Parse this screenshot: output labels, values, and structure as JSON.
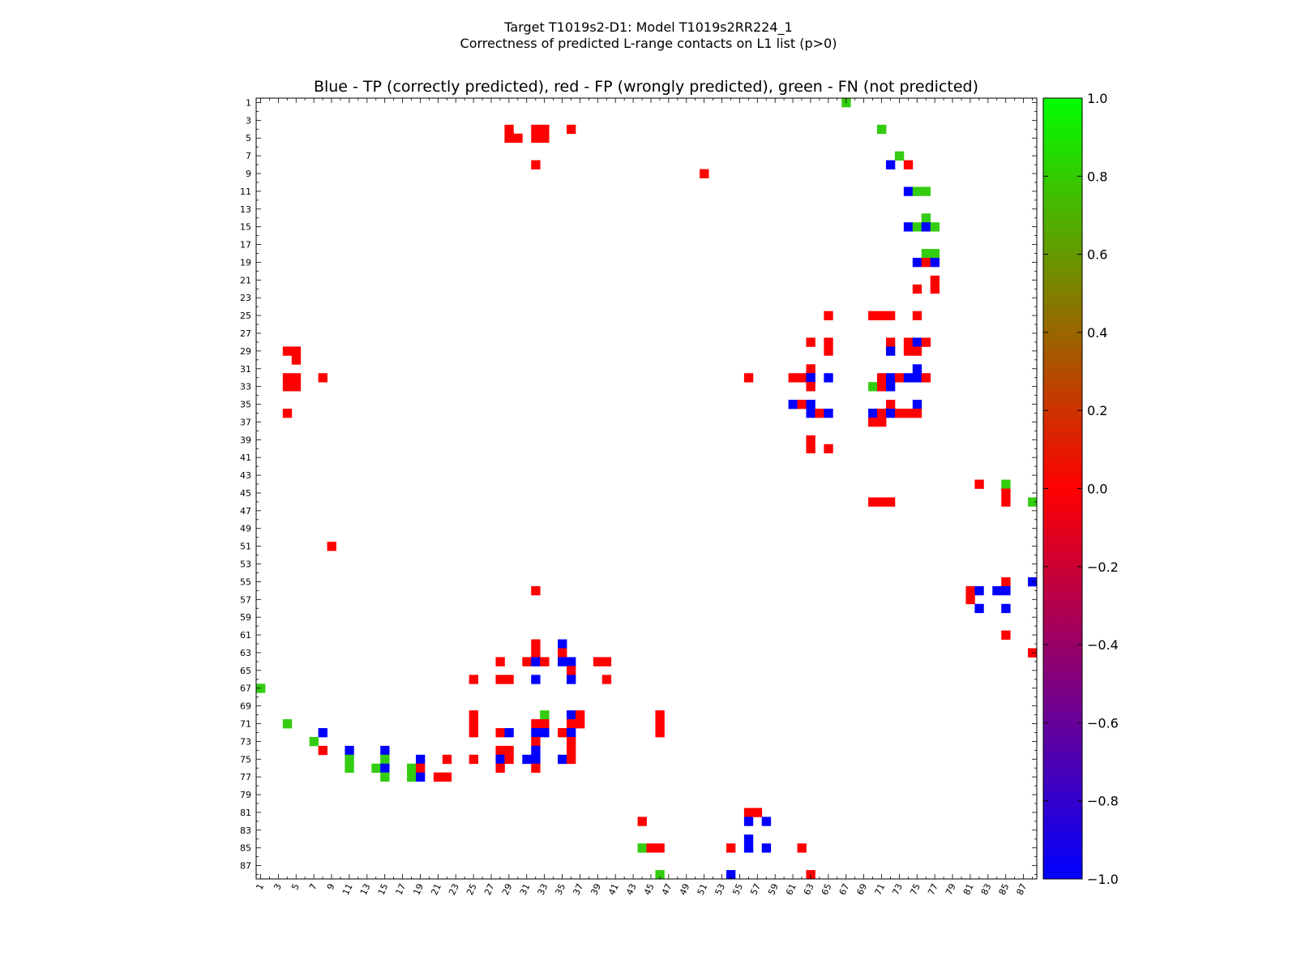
{
  "chart_data": {
    "type": "heatmap",
    "title_line1": "Target T1019s2-D1: Model T1019s2RR224_1",
    "title_line2": "Correctness of predicted L-range contacts on L1 list (p>0)",
    "subtitle": "Blue - TP (correctly predicted), red - FP (wrongly predicted), green - FN (not predicted)",
    "n": 88,
    "xlim": [
      1,
      88
    ],
    "ylim": [
      1,
      88
    ],
    "x_tick_labels": [
      "1",
      "3",
      "5",
      "7",
      "9",
      "11",
      "13",
      "15",
      "17",
      "19",
      "21",
      "23",
      "25",
      "27",
      "29",
      "31",
      "33",
      "35",
      "37",
      "39",
      "41",
      "43",
      "45",
      "47",
      "49",
      "51",
      "53",
      "55",
      "57",
      "59",
      "61",
      "63",
      "65",
      "67",
      "69",
      "71",
      "73",
      "75",
      "77",
      "79",
      "81",
      "83",
      "85",
      "87"
    ],
    "y_tick_labels": [
      "1",
      "3",
      "5",
      "7",
      "9",
      "11",
      "13",
      "15",
      "17",
      "19",
      "21",
      "23",
      "25",
      "27",
      "29",
      "31",
      "33",
      "35",
      "37",
      "39",
      "41",
      "43",
      "45",
      "47",
      "49",
      "51",
      "53",
      "55",
      "57",
      "59",
      "61",
      "63",
      "65",
      "67",
      "69",
      "71",
      "73",
      "75",
      "77",
      "79",
      "81",
      "83",
      "85",
      "87"
    ],
    "colorbar": {
      "min": -1.0,
      "max": 1.0,
      "tick_labels": [
        "1.0",
        "0.8",
        "0.6",
        "0.4",
        "0.2",
        "0.0",
        "−0.2",
        "−0.4",
        "−0.6",
        "−0.8",
        "−1.0"
      ],
      "colormap_stops": [
        "#0000ff",
        "#ff0000",
        "#00ff00"
      ]
    },
    "category_colors": {
      "TP": "#0000ff",
      "FP": "#ff0000",
      "FN": "#33cc11"
    },
    "cells": [
      {
        "x": 67,
        "y": 1,
        "c": "FN"
      },
      {
        "x": 29,
        "y": 4,
        "c": "FP"
      },
      {
        "x": 29,
        "y": 5,
        "c": "FP"
      },
      {
        "x": 30,
        "y": 5,
        "c": "FP"
      },
      {
        "x": 32,
        "y": 4,
        "c": "FP"
      },
      {
        "x": 33,
        "y": 4,
        "c": "FP"
      },
      {
        "x": 32,
        "y": 5,
        "c": "FP"
      },
      {
        "x": 33,
        "y": 5,
        "c": "FP"
      },
      {
        "x": 36,
        "y": 4,
        "c": "FP"
      },
      {
        "x": 71,
        "y": 4,
        "c": "FN"
      },
      {
        "x": 73,
        "y": 7,
        "c": "FN"
      },
      {
        "x": 32,
        "y": 8,
        "c": "FP"
      },
      {
        "x": 72,
        "y": 8,
        "c": "TP"
      },
      {
        "x": 74,
        "y": 8,
        "c": "FP"
      },
      {
        "x": 51,
        "y": 9,
        "c": "FP"
      },
      {
        "x": 74,
        "y": 11,
        "c": "TP"
      },
      {
        "x": 75,
        "y": 11,
        "c": "FN"
      },
      {
        "x": 76,
        "y": 11,
        "c": "FN"
      },
      {
        "x": 76,
        "y": 14,
        "c": "FN"
      },
      {
        "x": 74,
        "y": 15,
        "c": "TP"
      },
      {
        "x": 75,
        "y": 15,
        "c": "FN"
      },
      {
        "x": 76,
        "y": 15,
        "c": "TP"
      },
      {
        "x": 77,
        "y": 15,
        "c": "FN"
      },
      {
        "x": 76,
        "y": 18,
        "c": "FN"
      },
      {
        "x": 77,
        "y": 18,
        "c": "FN"
      },
      {
        "x": 75,
        "y": 19,
        "c": "TP"
      },
      {
        "x": 76,
        "y": 19,
        "c": "FP"
      },
      {
        "x": 77,
        "y": 19,
        "c": "TP"
      },
      {
        "x": 77,
        "y": 21,
        "c": "FP"
      },
      {
        "x": 75,
        "y": 22,
        "c": "FP"
      },
      {
        "x": 77,
        "y": 22,
        "c": "FP"
      },
      {
        "x": 65,
        "y": 25,
        "c": "FP"
      },
      {
        "x": 70,
        "y": 25,
        "c": "FP"
      },
      {
        "x": 71,
        "y": 25,
        "c": "FP"
      },
      {
        "x": 72,
        "y": 25,
        "c": "FP"
      },
      {
        "x": 75,
        "y": 25,
        "c": "FP"
      },
      {
        "x": 63,
        "y": 28,
        "c": "FP"
      },
      {
        "x": 65,
        "y": 28,
        "c": "FP"
      },
      {
        "x": 72,
        "y": 28,
        "c": "FP"
      },
      {
        "x": 74,
        "y": 28,
        "c": "FP"
      },
      {
        "x": 75,
        "y": 28,
        "c": "TP"
      },
      {
        "x": 76,
        "y": 28,
        "c": "FP"
      },
      {
        "x": 4,
        "y": 29,
        "c": "FP"
      },
      {
        "x": 5,
        "y": 29,
        "c": "FP"
      },
      {
        "x": 5,
        "y": 30,
        "c": "FP"
      },
      {
        "x": 65,
        "y": 29,
        "c": "FP"
      },
      {
        "x": 72,
        "y": 29,
        "c": "TP"
      },
      {
        "x": 74,
        "y": 29,
        "c": "FP"
      },
      {
        "x": 75,
        "y": 29,
        "c": "FP"
      },
      {
        "x": 63,
        "y": 31,
        "c": "FP"
      },
      {
        "x": 75,
        "y": 31,
        "c": "TP"
      },
      {
        "x": 4,
        "y": 32,
        "c": "FP"
      },
      {
        "x": 5,
        "y": 32,
        "c": "FP"
      },
      {
        "x": 4,
        "y": 33,
        "c": "FP"
      },
      {
        "x": 5,
        "y": 33,
        "c": "FP"
      },
      {
        "x": 8,
        "y": 32,
        "c": "FP"
      },
      {
        "x": 56,
        "y": 32,
        "c": "FP"
      },
      {
        "x": 61,
        "y": 32,
        "c": "FP"
      },
      {
        "x": 62,
        "y": 32,
        "c": "FP"
      },
      {
        "x": 63,
        "y": 32,
        "c": "TP"
      },
      {
        "x": 65,
        "y": 32,
        "c": "TP"
      },
      {
        "x": 71,
        "y": 32,
        "c": "FP"
      },
      {
        "x": 72,
        "y": 32,
        "c": "TP"
      },
      {
        "x": 73,
        "y": 32,
        "c": "FP"
      },
      {
        "x": 74,
        "y": 32,
        "c": "TP"
      },
      {
        "x": 75,
        "y": 32,
        "c": "TP"
      },
      {
        "x": 76,
        "y": 32,
        "c": "FP"
      },
      {
        "x": 63,
        "y": 33,
        "c": "FP"
      },
      {
        "x": 70,
        "y": 33,
        "c": "FN"
      },
      {
        "x": 71,
        "y": 33,
        "c": "FP"
      },
      {
        "x": 72,
        "y": 33,
        "c": "TP"
      },
      {
        "x": 61,
        "y": 35,
        "c": "TP"
      },
      {
        "x": 62,
        "y": 35,
        "c": "FP"
      },
      {
        "x": 63,
        "y": 35,
        "c": "TP"
      },
      {
        "x": 72,
        "y": 35,
        "c": "FP"
      },
      {
        "x": 75,
        "y": 35,
        "c": "TP"
      },
      {
        "x": 4,
        "y": 36,
        "c": "FP"
      },
      {
        "x": 63,
        "y": 36,
        "c": "TP"
      },
      {
        "x": 64,
        "y": 36,
        "c": "FP"
      },
      {
        "x": 65,
        "y": 36,
        "c": "TP"
      },
      {
        "x": 70,
        "y": 36,
        "c": "TP"
      },
      {
        "x": 71,
        "y": 36,
        "c": "FP"
      },
      {
        "x": 72,
        "y": 36,
        "c": "TP"
      },
      {
        "x": 73,
        "y": 36,
        "c": "FP"
      },
      {
        "x": 74,
        "y": 36,
        "c": "FP"
      },
      {
        "x": 75,
        "y": 36,
        "c": "FP"
      },
      {
        "x": 70,
        "y": 37,
        "c": "FP"
      },
      {
        "x": 71,
        "y": 37,
        "c": "FP"
      },
      {
        "x": 63,
        "y": 39,
        "c": "FP"
      },
      {
        "x": 63,
        "y": 40,
        "c": "FP"
      },
      {
        "x": 65,
        "y": 40,
        "c": "FP"
      },
      {
        "x": 82,
        "y": 44,
        "c": "FP"
      },
      {
        "x": 85,
        "y": 44,
        "c": "FN"
      },
      {
        "x": 85,
        "y": 45,
        "c": "FP"
      },
      {
        "x": 85,
        "y": 46,
        "c": "FP"
      },
      {
        "x": 70,
        "y": 46,
        "c": "FP"
      },
      {
        "x": 71,
        "y": 46,
        "c": "FP"
      },
      {
        "x": 72,
        "y": 46,
        "c": "FP"
      },
      {
        "x": 88,
        "y": 46,
        "c": "FN"
      },
      {
        "x": 9,
        "y": 51,
        "c": "FP"
      },
      {
        "x": 85,
        "y": 55,
        "c": "FP"
      },
      {
        "x": 88,
        "y": 55,
        "c": "TP"
      },
      {
        "x": 32,
        "y": 56,
        "c": "FP"
      },
      {
        "x": 81,
        "y": 56,
        "c": "FP"
      },
      {
        "x": 82,
        "y": 56,
        "c": "TP"
      },
      {
        "x": 84,
        "y": 56,
        "c": "TP"
      },
      {
        "x": 85,
        "y": 56,
        "c": "TP"
      },
      {
        "x": 81,
        "y": 57,
        "c": "FP"
      },
      {
        "x": 82,
        "y": 58,
        "c": "TP"
      },
      {
        "x": 85,
        "y": 58,
        "c": "TP"
      },
      {
        "x": 85,
        "y": 61,
        "c": "FP"
      },
      {
        "x": 32,
        "y": 62,
        "c": "FP"
      },
      {
        "x": 35,
        "y": 62,
        "c": "TP"
      },
      {
        "x": 32,
        "y": 63,
        "c": "FP"
      },
      {
        "x": 35,
        "y": 63,
        "c": "FP"
      },
      {
        "x": 88,
        "y": 63,
        "c": "FP"
      },
      {
        "x": 28,
        "y": 64,
        "c": "FP"
      },
      {
        "x": 31,
        "y": 64,
        "c": "FP"
      },
      {
        "x": 32,
        "y": 64,
        "c": "TP"
      },
      {
        "x": 33,
        "y": 64,
        "c": "FP"
      },
      {
        "x": 35,
        "y": 64,
        "c": "TP"
      },
      {
        "x": 36,
        "y": 64,
        "c": "TP"
      },
      {
        "x": 39,
        "y": 64,
        "c": "FP"
      },
      {
        "x": 40,
        "y": 64,
        "c": "FP"
      },
      {
        "x": 36,
        "y": 65,
        "c": "FP"
      },
      {
        "x": 25,
        "y": 66,
        "c": "FP"
      },
      {
        "x": 28,
        "y": 66,
        "c": "FP"
      },
      {
        "x": 29,
        "y": 66,
        "c": "FP"
      },
      {
        "x": 32,
        "y": 66,
        "c": "TP"
      },
      {
        "x": 36,
        "y": 66,
        "c": "TP"
      },
      {
        "x": 40,
        "y": 66,
        "c": "FP"
      },
      {
        "x": 1,
        "y": 67,
        "c": "FN"
      },
      {
        "x": 25,
        "y": 70,
        "c": "FP"
      },
      {
        "x": 33,
        "y": 70,
        "c": "FN"
      },
      {
        "x": 36,
        "y": 70,
        "c": "TP"
      },
      {
        "x": 37,
        "y": 70,
        "c": "FP"
      },
      {
        "x": 46,
        "y": 70,
        "c": "FP"
      },
      {
        "x": 4,
        "y": 71,
        "c": "FN"
      },
      {
        "x": 25,
        "y": 71,
        "c": "FP"
      },
      {
        "x": 32,
        "y": 71,
        "c": "FP"
      },
      {
        "x": 33,
        "y": 71,
        "c": "FP"
      },
      {
        "x": 36,
        "y": 71,
        "c": "FP"
      },
      {
        "x": 37,
        "y": 71,
        "c": "FP"
      },
      {
        "x": 46,
        "y": 71,
        "c": "FP"
      },
      {
        "x": 8,
        "y": 72,
        "c": "TP"
      },
      {
        "x": 25,
        "y": 72,
        "c": "FP"
      },
      {
        "x": 28,
        "y": 72,
        "c": "FP"
      },
      {
        "x": 29,
        "y": 72,
        "c": "TP"
      },
      {
        "x": 32,
        "y": 72,
        "c": "TP"
      },
      {
        "x": 33,
        "y": 72,
        "c": "TP"
      },
      {
        "x": 35,
        "y": 72,
        "c": "FP"
      },
      {
        "x": 36,
        "y": 72,
        "c": "TP"
      },
      {
        "x": 46,
        "y": 72,
        "c": "FP"
      },
      {
        "x": 7,
        "y": 73,
        "c": "FN"
      },
      {
        "x": 32,
        "y": 73,
        "c": "FP"
      },
      {
        "x": 36,
        "y": 73,
        "c": "FP"
      },
      {
        "x": 8,
        "y": 74,
        "c": "FP"
      },
      {
        "x": 11,
        "y": 74,
        "c": "TP"
      },
      {
        "x": 15,
        "y": 74,
        "c": "TP"
      },
      {
        "x": 28,
        "y": 74,
        "c": "FP"
      },
      {
        "x": 29,
        "y": 74,
        "c": "FP"
      },
      {
        "x": 32,
        "y": 74,
        "c": "TP"
      },
      {
        "x": 36,
        "y": 74,
        "c": "FP"
      },
      {
        "x": 11,
        "y": 75,
        "c": "FN"
      },
      {
        "x": 15,
        "y": 75,
        "c": "FN"
      },
      {
        "x": 19,
        "y": 75,
        "c": "TP"
      },
      {
        "x": 22,
        "y": 75,
        "c": "FP"
      },
      {
        "x": 25,
        "y": 75,
        "c": "FP"
      },
      {
        "x": 28,
        "y": 75,
        "c": "TP"
      },
      {
        "x": 29,
        "y": 75,
        "c": "FP"
      },
      {
        "x": 31,
        "y": 75,
        "c": "TP"
      },
      {
        "x": 32,
        "y": 75,
        "c": "TP"
      },
      {
        "x": 35,
        "y": 75,
        "c": "TP"
      },
      {
        "x": 36,
        "y": 75,
        "c": "FP"
      },
      {
        "x": 11,
        "y": 76,
        "c": "FN"
      },
      {
        "x": 14,
        "y": 76,
        "c": "FN"
      },
      {
        "x": 15,
        "y": 76,
        "c": "TP"
      },
      {
        "x": 18,
        "y": 76,
        "c": "FN"
      },
      {
        "x": 19,
        "y": 76,
        "c": "FP"
      },
      {
        "x": 28,
        "y": 76,
        "c": "FP"
      },
      {
        "x": 32,
        "y": 76,
        "c": "FP"
      },
      {
        "x": 15,
        "y": 77,
        "c": "FN"
      },
      {
        "x": 18,
        "y": 77,
        "c": "FN"
      },
      {
        "x": 19,
        "y": 77,
        "c": "TP"
      },
      {
        "x": 21,
        "y": 77,
        "c": "FP"
      },
      {
        "x": 22,
        "y": 77,
        "c": "FP"
      },
      {
        "x": 56,
        "y": 81,
        "c": "FP"
      },
      {
        "x": 57,
        "y": 81,
        "c": "FP"
      },
      {
        "x": 44,
        "y": 82,
        "c": "FP"
      },
      {
        "x": 56,
        "y": 82,
        "c": "TP"
      },
      {
        "x": 58,
        "y": 82,
        "c": "TP"
      },
      {
        "x": 56,
        "y": 84,
        "c": "TP"
      },
      {
        "x": 44,
        "y": 85,
        "c": "FN"
      },
      {
        "x": 45,
        "y": 85,
        "c": "FP"
      },
      {
        "x": 46,
        "y": 85,
        "c": "FP"
      },
      {
        "x": 54,
        "y": 85,
        "c": "FP"
      },
      {
        "x": 56,
        "y": 85,
        "c": "TP"
      },
      {
        "x": 58,
        "y": 85,
        "c": "TP"
      },
      {
        "x": 62,
        "y": 85,
        "c": "FP"
      },
      {
        "x": 46,
        "y": 88,
        "c": "FN"
      },
      {
        "x": 54,
        "y": 88,
        "c": "TP"
      },
      {
        "x": 63,
        "y": 88,
        "c": "FP"
      }
    ]
  }
}
